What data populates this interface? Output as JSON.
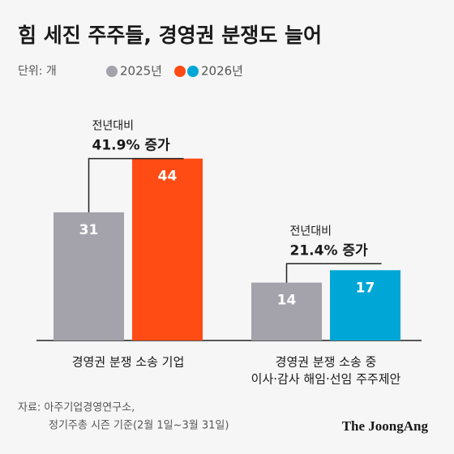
{
  "chart_data": {
    "type": "bar",
    "title": "힘 세진 주주들, 경영권 분쟁도 늘어",
    "unit": "단위: 개",
    "categories": [
      [
        "경영권 분쟁 소송 기업"
      ],
      [
        "경영권 분쟁 소송 중",
        "이사·감사 해임·선임 주주제안"
      ]
    ],
    "series": [
      {
        "name": "2025년",
        "color": "#a4a2ab",
        "values": [
          31,
          14
        ]
      },
      {
        "name": "2026년",
        "colors": [
          "#ff4b14",
          "#00a6d6"
        ],
        "values": [
          44,
          17
        ]
      }
    ],
    "annotations": [
      {
        "label": "전년대비",
        "text": "41.9% 증가"
      },
      {
        "label": "전년대비",
        "text": "21.4% 증가"
      }
    ],
    "source": [
      "자료: 아주기업경영연구소,",
      "정기주총 시즌 기준(2월 1일~3월 31일)"
    ],
    "logo": "The JoongAng"
  }
}
